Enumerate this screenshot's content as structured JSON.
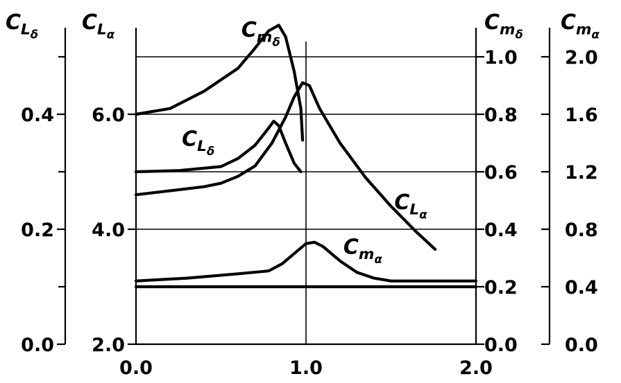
{
  "chart_data": {
    "type": "line",
    "title": "",
    "xlabel": "",
    "x_range": [
      0.0,
      2.0
    ],
    "x_ticks": [
      "0.0",
      "1.0",
      "2.0"
    ],
    "axes": {
      "cl_delta": {
        "label_main": "C",
        "label_sub": "L",
        "label_subsub": "δ",
        "range": [
          0.0,
          0.5
        ],
        "ticks": [
          "0.4",
          "0.2",
          "0.0"
        ],
        "tick_values": [
          0.4,
          0.2,
          0.0
        ]
      },
      "cl_alpha": {
        "label_main": "C",
        "label_sub": "L",
        "label_subsub": "α",
        "range": [
          2.0,
          7.0
        ],
        "ticks": [
          "6.0",
          "4.0",
          "2.0"
        ],
        "tick_values": [
          6.0,
          4.0,
          2.0
        ]
      },
      "cm_delta": {
        "label_main": "C",
        "label_sub": "m",
        "label_subsub": "δ",
        "range": [
          0.0,
          1.2
        ],
        "ticks": [
          "1.0",
          "0.8",
          "0.6",
          "0.4",
          "0.2",
          "0.0"
        ],
        "tick_values": [
          1.0,
          0.8,
          0.6,
          0.4,
          0.2,
          0.0
        ]
      },
      "cm_alpha": {
        "label_main": "C",
        "label_sub": "m",
        "label_subsub": "α",
        "range": [
          0.0,
          2.4
        ],
        "ticks": [
          "2.0",
          "1.6",
          "1.2",
          "0.8",
          "0.4",
          "0.0"
        ],
        "tick_values": [
          2.0,
          1.6,
          1.2,
          0.8,
          0.4,
          0.0
        ]
      }
    },
    "gridlines_cm_delta": [
      1.0,
      0.8,
      0.6,
      0.4,
      0.2
    ],
    "x_gridline": 1.0,
    "series": [
      {
        "name": "Cmδ",
        "axis": "cm_delta",
        "label_main": "C",
        "label_sub": "m",
        "label_subsub": "δ",
        "label_at": [
          0.62,
          1.07
        ],
        "points": [
          [
            0.0,
            0.8
          ],
          [
            0.2,
            0.82
          ],
          [
            0.4,
            0.88
          ],
          [
            0.6,
            0.96
          ],
          [
            0.7,
            1.03
          ],
          [
            0.78,
            1.09
          ],
          [
            0.84,
            1.11
          ],
          [
            0.88,
            1.07
          ],
          [
            0.93,
            0.95
          ],
          [
            0.97,
            0.82
          ],
          [
            0.98,
            0.71
          ]
        ]
      },
      {
        "name": "CLα",
        "axis": "cl_alpha",
        "label_main": "C",
        "label_sub": "L",
        "label_subsub": "α",
        "label_at": [
          1.52,
          4.35
        ],
        "points": [
          [
            0.0,
            4.6
          ],
          [
            0.2,
            4.67
          ],
          [
            0.4,
            4.74
          ],
          [
            0.5,
            4.8
          ],
          [
            0.6,
            4.92
          ],
          [
            0.7,
            5.1
          ],
          [
            0.8,
            5.5
          ],
          [
            0.88,
            5.95
          ],
          [
            0.93,
            6.3
          ],
          [
            0.98,
            6.55
          ],
          [
            1.02,
            6.5
          ],
          [
            1.08,
            6.1
          ],
          [
            1.2,
            5.5
          ],
          [
            1.35,
            4.9
          ],
          [
            1.5,
            4.4
          ],
          [
            1.65,
            3.95
          ],
          [
            1.76,
            3.65
          ]
        ]
      },
      {
        "name": "CLδ",
        "axis": "cl_delta",
        "label_main": "C",
        "label_sub": "L",
        "label_subsub": "δ",
        "label_at": [
          0.27,
          0.345
        ],
        "points": [
          [
            0.0,
            0.3
          ],
          [
            0.25,
            0.302
          ],
          [
            0.5,
            0.309
          ],
          [
            0.6,
            0.323
          ],
          [
            0.7,
            0.346
          ],
          [
            0.77,
            0.372
          ],
          [
            0.81,
            0.388
          ],
          [
            0.84,
            0.38
          ],
          [
            0.88,
            0.35
          ],
          [
            0.93,
            0.315
          ],
          [
            0.97,
            0.3
          ]
        ]
      },
      {
        "name": "Cmα",
        "axis": "cm_alpha",
        "label_main": "C",
        "label_sub": "m",
        "label_subsub": "α",
        "label_at": [
          1.22,
          0.63
        ],
        "points": [
          [
            0.0,
            0.44
          ],
          [
            0.3,
            0.46
          ],
          [
            0.6,
            0.49
          ],
          [
            0.78,
            0.51
          ],
          [
            0.86,
            0.56
          ],
          [
            0.94,
            0.64
          ],
          [
            1.0,
            0.7
          ],
          [
            1.05,
            0.71
          ],
          [
            1.1,
            0.68
          ],
          [
            1.2,
            0.58
          ],
          [
            1.3,
            0.5
          ],
          [
            1.4,
            0.46
          ],
          [
            1.5,
            0.44
          ],
          [
            2.0,
            0.44
          ]
        ]
      }
    ],
    "baseline_cm_alpha": 0.4
  }
}
